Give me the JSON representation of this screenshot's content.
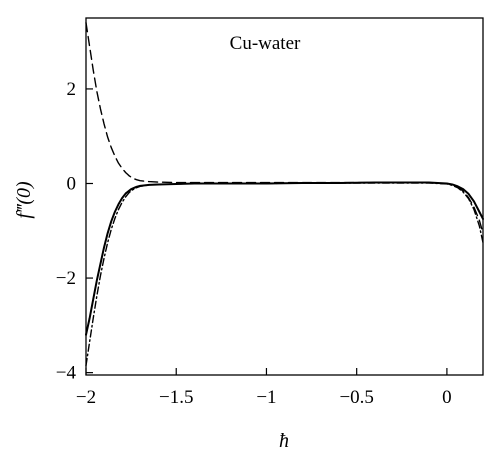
{
  "chart_data": {
    "type": "line",
    "title": "",
    "annotation": "Cu-water",
    "xlabel": "ħ",
    "ylabel": "f‴(0)",
    "xlim": [
      -2.0,
      0.2
    ],
    "ylim": [
      -4.05,
      3.5
    ],
    "x_ticks": [
      -2,
      -1.5,
      -1,
      -0.5,
      0
    ],
    "x_tick_labels": [
      "−2",
      "−1.5",
      "−1",
      "−0.5",
      "0"
    ],
    "y_ticks": [
      2,
      0,
      -2,
      -4
    ],
    "y_tick_labels": [
      "2",
      "0",
      "−2",
      "−4"
    ],
    "grid": false,
    "legend": "none",
    "series": [
      {
        "style": "solid",
        "x": [
          -2.0,
          -1.98,
          -1.96,
          -1.94,
          -1.92,
          -1.9,
          -1.88,
          -1.86,
          -1.84,
          -1.82,
          -1.8,
          -1.78,
          -1.75,
          -1.72,
          -1.7,
          -1.65,
          -1.6,
          -1.5,
          -1.4,
          -1.2,
          -1.0,
          -0.8,
          -0.6,
          -0.4,
          -0.2,
          -0.1,
          -0.05,
          0.0,
          0.03,
          0.06,
          0.09,
          0.12,
          0.15,
          0.18,
          0.2
        ],
        "y": [
          -3.2,
          -2.85,
          -2.45,
          -2.05,
          -1.7,
          -1.35,
          -1.05,
          -0.8,
          -0.6,
          -0.44,
          -0.31,
          -0.21,
          -0.12,
          -0.07,
          -0.05,
          -0.03,
          -0.02,
          -0.01,
          0.0,
          0.0,
          0.0,
          0.01,
          0.01,
          0.02,
          0.02,
          0.02,
          0.01,
          0.0,
          -0.02,
          -0.06,
          -0.12,
          -0.22,
          -0.38,
          -0.6,
          -0.75
        ]
      },
      {
        "style": "dashed",
        "x": [
          -2.0,
          -1.98,
          -1.96,
          -1.94,
          -1.92,
          -1.9,
          -1.88,
          -1.86,
          -1.84,
          -1.82,
          -1.8,
          -1.78,
          -1.76,
          -1.74,
          -1.72,
          -1.7,
          -1.65,
          -1.6,
          -1.5,
          -1.4,
          -1.2,
          -1.0,
          -0.8,
          -0.6,
          -0.4,
          -0.2,
          -0.1,
          -0.05,
          0.0,
          0.03,
          0.06,
          0.09,
          0.12,
          0.15,
          0.18,
          0.2
        ],
        "y": [
          3.4,
          2.9,
          2.4,
          1.95,
          1.58,
          1.26,
          0.98,
          0.76,
          0.58,
          0.43,
          0.32,
          0.23,
          0.16,
          0.11,
          0.08,
          0.06,
          0.04,
          0.03,
          0.02,
          0.02,
          0.02,
          0.02,
          0.02,
          0.02,
          0.02,
          0.02,
          0.02,
          0.01,
          0.0,
          -0.03,
          -0.08,
          -0.16,
          -0.3,
          -0.5,
          -0.78,
          -1.05
        ]
      },
      {
        "style": "dash-dot",
        "x": [
          -2.0,
          -1.98,
          -1.96,
          -1.94,
          -1.92,
          -1.9,
          -1.88,
          -1.86,
          -1.84,
          -1.82,
          -1.8,
          -1.78,
          -1.76,
          -1.74,
          -1.72,
          -1.7,
          -1.65,
          -1.6,
          -1.5,
          -1.4,
          -1.2,
          -1.0,
          -0.8,
          -0.6,
          -0.4,
          -0.2,
          -0.1,
          -0.05,
          0.0,
          0.03,
          0.06,
          0.09,
          0.12,
          0.15,
          0.18,
          0.2
        ],
        "y": [
          -3.85,
          -3.35,
          -2.85,
          -2.38,
          -1.95,
          -1.58,
          -1.25,
          -0.97,
          -0.74,
          -0.55,
          -0.4,
          -0.28,
          -0.19,
          -0.13,
          -0.09,
          -0.06,
          -0.03,
          -0.02,
          -0.01,
          0.0,
          0.0,
          0.0,
          0.01,
          0.01,
          0.01,
          0.01,
          0.01,
          0.0,
          -0.01,
          -0.04,
          -0.09,
          -0.18,
          -0.32,
          -0.55,
          -0.9,
          -1.25
        ]
      }
    ]
  }
}
